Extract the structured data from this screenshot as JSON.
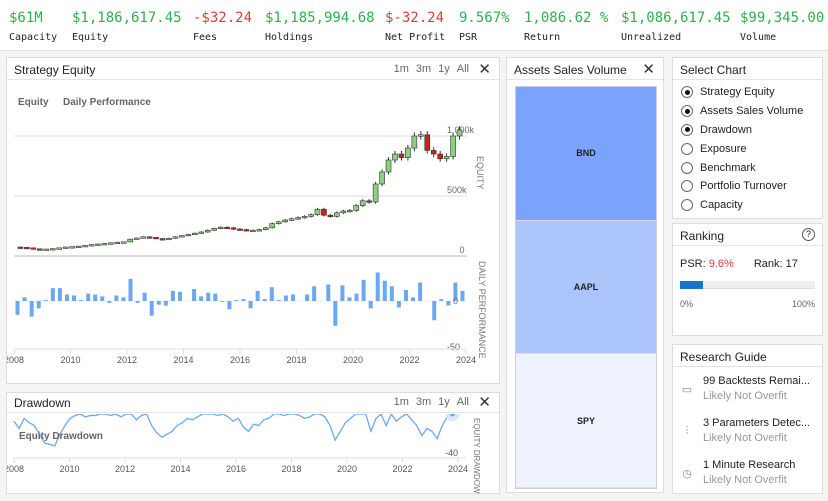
{
  "stats": [
    {
      "label": "Capacity",
      "value": "$61M",
      "negative": false
    },
    {
      "label": "Equity",
      "value": "$1,186,617.45",
      "negative": false
    },
    {
      "label": "Fees",
      "value": "-$32.24",
      "negative": true
    },
    {
      "label": "Holdings",
      "value": "$1,185,994.68",
      "negative": false
    },
    {
      "label": "Net Profit",
      "value": "$-32.24",
      "negative": true
    },
    {
      "label": "PSR",
      "value": "9.567%",
      "negative": false
    },
    {
      "label": "Return",
      "value": "1,086.62 %",
      "negative": false
    },
    {
      "label": "Unrealized",
      "value": "$1,086,617.45",
      "negative": false
    },
    {
      "label": "Volume",
      "value": "$99,345.00",
      "negative": false
    }
  ],
  "ranges": [
    "1m",
    "3m",
    "1y",
    "All"
  ],
  "equity_panel": {
    "title": "Strategy Equity",
    "legend": [
      "Equity",
      "Daily Performance"
    ],
    "y_axis_label": "EQUITY",
    "y2_axis_label": "DAILY PERFORMANCE",
    "equity_ticks": [
      "0",
      "500k",
      "1 000k"
    ],
    "perf_ticks": [
      "0",
      "-50"
    ]
  },
  "drawdown_panel": {
    "title": "Drawdown",
    "legend": "Equity Drawdown",
    "y_axis_label": "EQUITY DRAWDOWN",
    "ticks": [
      "-40"
    ]
  },
  "x_ticks": [
    "2008",
    "2010",
    "2012",
    "2014",
    "2016",
    "2018",
    "2020",
    "2022",
    "2024"
  ],
  "chart_data": [
    {
      "type": "candlestick",
      "title": "Strategy Equity",
      "ylabel": "EQUITY",
      "ylim": [
        0,
        1150000
      ],
      "x_range": [
        2008,
        2024
      ],
      "closes_k": [
        75,
        72,
        68,
        60,
        56,
        58,
        62,
        68,
        75,
        78,
        82,
        88,
        95,
        100,
        104,
        110,
        115,
        118,
        140,
        150,
        160,
        155,
        145,
        140,
        148,
        160,
        170,
        180,
        190,
        200,
        215,
        230,
        240,
        235,
        225,
        220,
        215,
        215,
        220,
        235,
        270,
        285,
        300,
        310,
        320,
        330,
        345,
        390,
        340,
        330,
        360,
        375,
        380,
        420,
        460,
        450,
        600,
        700,
        800,
        850,
        820,
        900,
        1000,
        1010,
        880,
        850,
        810,
        830,
        1000,
        1050
      ],
      "colors": {
        "up": "#8ccf7e",
        "down": "#c0281b"
      }
    },
    {
      "type": "bar",
      "ylabel": "DAILY PERFORMANCE",
      "ylim": [
        -55,
        35
      ],
      "values": [
        -15,
        4,
        -17,
        -8,
        1,
        14,
        14,
        7,
        6,
        1,
        8,
        7,
        5,
        -2,
        6,
        4,
        24,
        -2,
        9,
        -16,
        -4,
        -5,
        11,
        10,
        0,
        13,
        5,
        9,
        8,
        -1,
        -9,
        1,
        2,
        -8,
        11,
        2,
        15,
        1,
        6,
        7,
        0,
        7,
        16,
        0,
        18,
        -27,
        17,
        4,
        8,
        23,
        -8,
        31,
        22,
        16,
        -7,
        12,
        4,
        20,
        0,
        -21,
        2,
        -5,
        20,
        11
      ],
      "color": "#6aa9ef"
    },
    {
      "type": "line",
      "title": "Drawdown",
      "ylabel": "EQUITY DRAWDOWN",
      "ylim": [
        -40,
        0
      ],
      "values": [
        -5,
        -10,
        -3,
        -6,
        -8,
        -14,
        -20,
        -21,
        -22,
        -14,
        -8,
        -3,
        -1,
        0,
        -2,
        -1,
        -1,
        0,
        0,
        -1,
        0,
        -2,
        0,
        0,
        -4,
        -1,
        0,
        -8,
        -13,
        -16,
        -14,
        -12,
        -8,
        -6,
        -3,
        -4,
        -2,
        0,
        0,
        0,
        -1,
        0,
        -2,
        -5,
        -3,
        -9,
        -12,
        -7,
        -8,
        -4,
        -3,
        0,
        0,
        -1,
        0,
        0,
        -1,
        -3,
        -2,
        0,
        0,
        -2,
        -8,
        -18,
        -12,
        -6,
        -3,
        0,
        0,
        0,
        -12,
        -3,
        0,
        -8,
        0,
        -5,
        -2,
        0,
        -4,
        -8,
        -15,
        -10,
        -12,
        -17,
        -8,
        -2,
        0
      ],
      "color": "#6aa9ef"
    }
  ],
  "assets_panel": {
    "title": "Assets Sales Volume",
    "items": [
      {
        "label": "BND",
        "color": "#7aa3fb"
      },
      {
        "label": "AAPL",
        "color": "#abc5fb"
      },
      {
        "label": "SPY",
        "color": "#edf2fd"
      }
    ]
  },
  "select_chart": {
    "title": "Select Chart",
    "options": [
      {
        "label": "Strategy Equity",
        "checked": true
      },
      {
        "label": "Assets Sales Volume",
        "checked": true
      },
      {
        "label": "Drawdown",
        "checked": true
      },
      {
        "label": "Exposure",
        "checked": false
      },
      {
        "label": "Benchmark",
        "checked": false
      },
      {
        "label": "Portfolio Turnover",
        "checked": false
      },
      {
        "label": "Capacity",
        "checked": false
      }
    ]
  },
  "ranking": {
    "title": "Ranking",
    "psr_label": "PSR:",
    "psr_value": "9.6%",
    "rank_label": "Rank:",
    "rank_value": "17",
    "progress": 0.096,
    "min": "0%",
    "max": "100%"
  },
  "research_guide": {
    "title": "Research Guide",
    "items": [
      {
        "icon": "battery-icon",
        "title": "99 Backtests Remai...",
        "status": "Likely Not Overfit"
      },
      {
        "icon": "sliders-icon",
        "title": "3 Parameters Detec...",
        "status": "Likely Not Overfit"
      },
      {
        "icon": "clock-icon",
        "title": "1 Minute Research",
        "status": "Likely Not Overfit"
      }
    ]
  }
}
